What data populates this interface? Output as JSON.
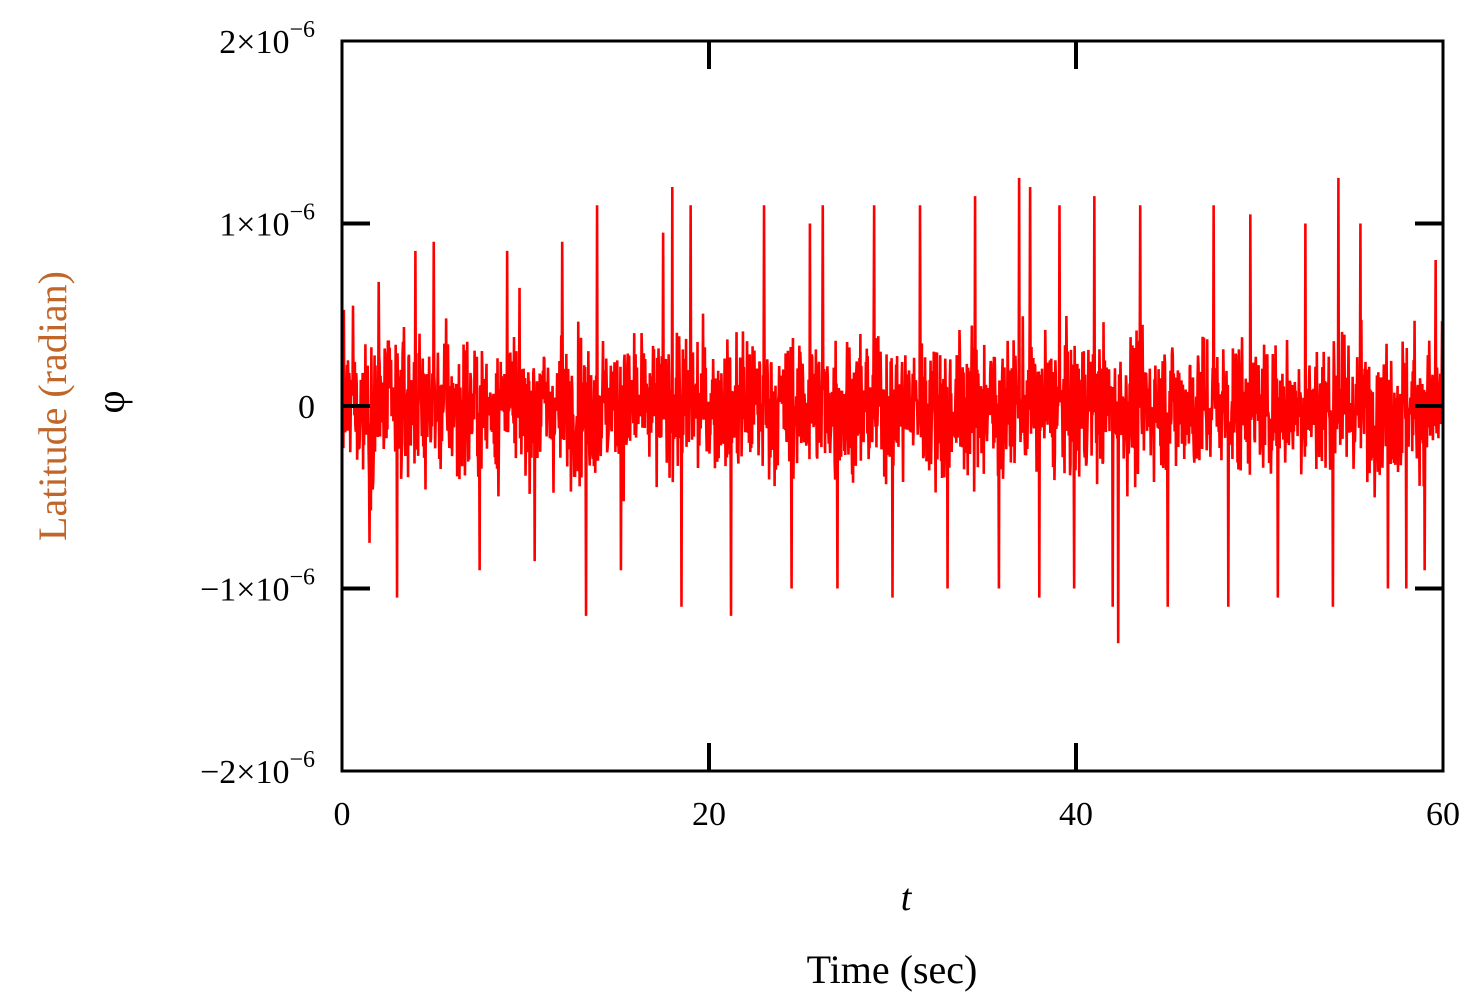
{
  "chart_data": {
    "type": "line",
    "title": "",
    "xlabel": "Time (sec)",
    "xvar": "t",
    "ylabel": "Latitude (radian)",
    "yvar": "φ",
    "xlim": [
      0,
      60
    ],
    "ylim": [
      -2e-06,
      2e-06
    ],
    "xticks": [
      0,
      20,
      40,
      60
    ],
    "xtick_labels": [
      "0",
      "20",
      "40",
      "60"
    ],
    "yticks": [
      2e-06,
      1e-06,
      0,
      -1e-06,
      -2e-06
    ],
    "ytick_labels": [
      {
        "mantissa": "2×10",
        "exp": "−6"
      },
      {
        "mantissa": "1×10",
        "exp": "−6"
      },
      {
        "mantissa": "0",
        "exp": ""
      },
      {
        "mantissa": "−1×10",
        "exp": "−6"
      },
      {
        "mantissa": "−2×10",
        "exp": "−6"
      }
    ],
    "grid": false,
    "colors": {
      "series": "#ff0000",
      "ylabel": "#c0662a",
      "axes": "#000000"
    },
    "series": [
      {
        "description": "Random noise signal oscillating around 0 rad, typical amplitude about ±5×10^-7 rad, peaks reaching ≈1.25×10^-6 (t≈37) and troughs ≈-1.3×10^-6 (t≈42.3)",
        "x": [
          0,
          0.6,
          1.5,
          2.0,
          3.0,
          4.0,
          5.0,
          7.5,
          9.0,
          10.5,
          12.0,
          13.3,
          13.9,
          15.2,
          17.5,
          18.0,
          18.5,
          19.0,
          21.2,
          23.0,
          24.5,
          25.5,
          26.2,
          27.0,
          29.0,
          30.0,
          31.5,
          33.0,
          34.5,
          35.8,
          36.9,
          37.5,
          38.0,
          39.1,
          39.9,
          41.0,
          42.0,
          42.3,
          43.5,
          45.0,
          47.5,
          48.3,
          49.5,
          51.0,
          52.5,
          54.0,
          54.3,
          55.5,
          57.0,
          58.0,
          59.0,
          59.6,
          60.0
        ],
        "y": [
          6e-07,
          5.5e-07,
          -7.5e-07,
          6.8e-07,
          -1.05e-06,
          8.5e-07,
          9e-07,
          -9e-07,
          8.5e-07,
          -8.5e-07,
          9e-07,
          -1.15e-06,
          1.1e-06,
          -9e-07,
          9.5e-07,
          1.2e-06,
          -1.1e-06,
          1.1e-06,
          -1.15e-06,
          1.1e-06,
          -1e-06,
          1e-06,
          1.1e-06,
          -1e-06,
          1.1e-06,
          -1.05e-06,
          1.1e-06,
          -1e-06,
          1.15e-06,
          -1e-06,
          1.25e-06,
          1.2e-06,
          -1.05e-06,
          1.1e-06,
          -1e-06,
          1.15e-06,
          -1.1e-06,
          -1.3e-06,
          1.1e-06,
          -1.1e-06,
          1.1e-06,
          -1.1e-06,
          1.05e-06,
          -1.05e-06,
          1e-06,
          -1.1e-06,
          1.25e-06,
          1e-06,
          -1e-06,
          -1e-06,
          -9e-07,
          8e-07,
          4e-07
        ]
      }
    ]
  }
}
